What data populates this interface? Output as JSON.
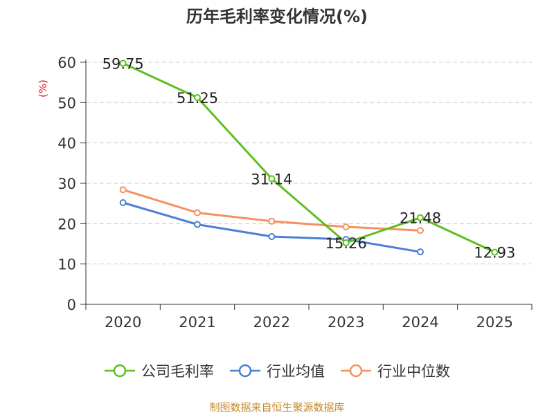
{
  "chart_data": {
    "type": "line",
    "title": "历年毛利率变化情况(%)",
    "ylabel": "(%)",
    "xlabel": "",
    "categories": [
      "2020",
      "2021",
      "2022",
      "2023",
      "2024",
      "2025"
    ],
    "ylim": [
      0,
      60
    ],
    "yticks": [
      0,
      10,
      20,
      30,
      40,
      50,
      60
    ],
    "grid": true,
    "legend_position": "bottom",
    "series": [
      {
        "name": "公司毛利率",
        "color": "#5cbf1f",
        "values": [
          59.75,
          51.25,
          31.14,
          15.26,
          21.48,
          12.93
        ],
        "labels": [
          "59.75",
          "51.25",
          "31.14",
          "15.26",
          "21.48",
          "12.93"
        ]
      },
      {
        "name": "行业均值",
        "color": "#4a7fd6",
        "values": [
          25.2,
          19.8,
          16.8,
          16.1,
          13.0,
          null
        ]
      },
      {
        "name": "行业中位数",
        "color": "#f5915e",
        "values": [
          28.4,
          22.7,
          20.6,
          19.2,
          18.3,
          null
        ]
      }
    ]
  },
  "source_text": "制图数据来自恒生聚源数据库",
  "colors": {
    "ylabel": "#e0201f",
    "source": "#c28a2c",
    "axis": "#333333",
    "grid": "#cccccc"
  }
}
